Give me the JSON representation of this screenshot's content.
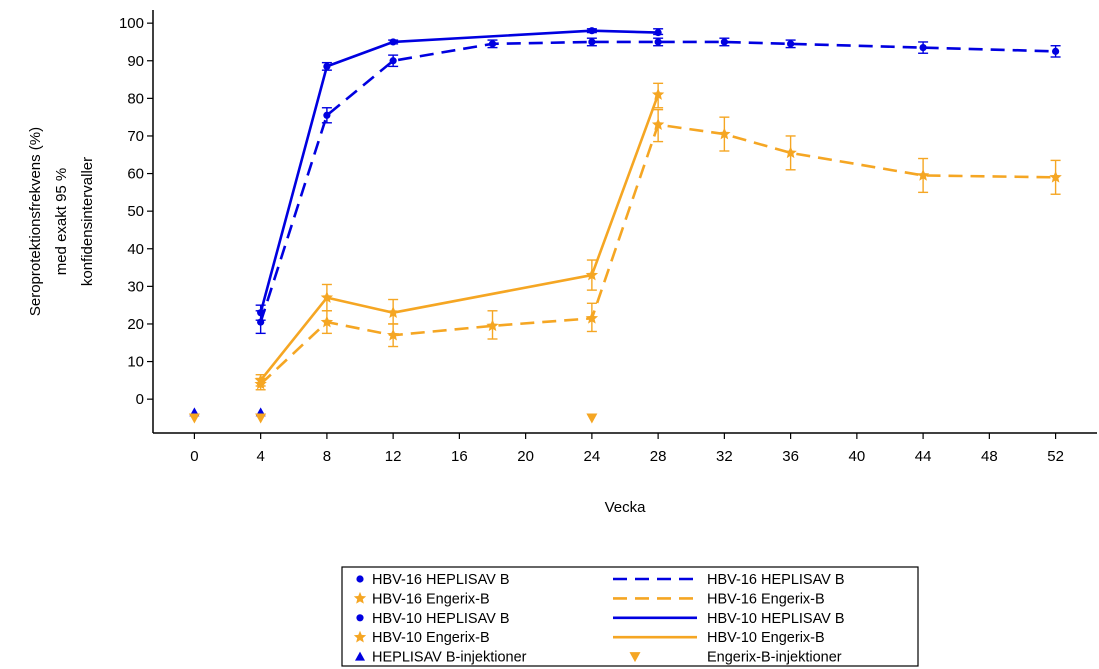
{
  "chart_data": {
    "type": "line",
    "xlabel": "Vecka",
    "ylabel_lines": [
      "Seroprotektionsfrekvens (%)",
      "med exakt 95 %",
      "konfidensintervaller"
    ],
    "x_ticks": [
      0,
      4,
      8,
      12,
      16,
      20,
      24,
      28,
      32,
      36,
      40,
      44,
      48,
      52
    ],
    "y_ticks": [
      0,
      10,
      20,
      30,
      40,
      50,
      60,
      70,
      80,
      90,
      100
    ],
    "xlim": [
      -2.5,
      54.5
    ],
    "ylim": [
      -9,
      103.5
    ],
    "colors": {
      "heplisav": "#0000e0",
      "engerix": "#f5a623"
    },
    "series": [
      {
        "study": "HBV-16",
        "vaccine": "HEPLISAV B",
        "line_style": "dashed",
        "marker": "circle",
        "color": "#0000e0",
        "points": [
          {
            "x": 4,
            "y": 20.5,
            "lo": 17.5,
            "hi": 23.5
          },
          {
            "x": 8,
            "y": 75.5,
            "lo": 73.5,
            "hi": 77.5
          },
          {
            "x": 12,
            "y": 90,
            "lo": 88.5,
            "hi": 91.5
          },
          {
            "x": 18,
            "y": 94.5,
            "lo": 93.5,
            "hi": 95.5
          },
          {
            "x": 24,
            "y": 95,
            "lo": 94,
            "hi": 96
          },
          {
            "x": 28,
            "y": 95,
            "lo": 94,
            "hi": 96
          },
          {
            "x": 32,
            "y": 95,
            "lo": 94,
            "hi": 96
          },
          {
            "x": 36,
            "y": 94.5,
            "lo": 93.5,
            "hi": 95.5
          },
          {
            "x": 44,
            "y": 93.5,
            "lo": 92,
            "hi": 95
          },
          {
            "x": 52,
            "y": 92.5,
            "lo": 91,
            "hi": 94
          }
        ]
      },
      {
        "study": "HBV-16",
        "vaccine": "Engerix-B",
        "line_style": "dashed",
        "marker": "star",
        "color": "#f5a623",
        "points": [
          {
            "x": 4,
            "y": 4,
            "lo": 2.5,
            "hi": 5.5
          },
          {
            "x": 8,
            "y": 20.5,
            "lo": 17.5,
            "hi": 23.5
          },
          {
            "x": 12,
            "y": 17,
            "lo": 14,
            "hi": 20
          },
          {
            "x": 18,
            "y": 19.5,
            "lo": 16,
            "hi": 23.5
          },
          {
            "x": 24,
            "y": 21.5,
            "lo": 18,
            "hi": 25.5
          },
          {
            "x": 28,
            "y": 73,
            "lo": 68.5,
            "hi": 77
          },
          {
            "x": 32,
            "y": 70.5,
            "lo": 66,
            "hi": 75
          },
          {
            "x": 36,
            "y": 65.5,
            "lo": 61,
            "hi": 70
          },
          {
            "x": 44,
            "y": 59.5,
            "lo": 55,
            "hi": 64
          },
          {
            "x": 52,
            "y": 59,
            "lo": 54.5,
            "hi": 63.5
          }
        ]
      },
      {
        "study": "HBV-10",
        "vaccine": "HEPLISAV B",
        "line_style": "solid",
        "marker": "circle",
        "color": "#0000e0",
        "points": [
          {
            "x": 4,
            "y": 23,
            "lo": 21,
            "hi": 25
          },
          {
            "x": 8,
            "y": 88.5,
            "lo": 87.5,
            "hi": 89.5
          },
          {
            "x": 12,
            "y": 95,
            "lo": 94.5,
            "hi": 95.5
          },
          {
            "x": 24,
            "y": 98,
            "lo": 97.5,
            "hi": 98.5
          },
          {
            "x": 28,
            "y": 97.5,
            "lo": 97,
            "hi": 98.5
          }
        ]
      },
      {
        "study": "HBV-10",
        "vaccine": "Engerix-B",
        "line_style": "solid",
        "marker": "star",
        "color": "#f5a623",
        "points": [
          {
            "x": 4,
            "y": 5,
            "lo": 3.5,
            "hi": 6.5
          },
          {
            "x": 8,
            "y": 27,
            "lo": 23.5,
            "hi": 30.5
          },
          {
            "x": 12,
            "y": 23,
            "lo": 20,
            "hi": 26.5
          },
          {
            "x": 24,
            "y": 33,
            "lo": 29,
            "hi": 37
          },
          {
            "x": 28,
            "y": 81,
            "lo": 77.5,
            "hi": 84
          }
        ]
      }
    ],
    "injections": [
      {
        "vaccine": "HEPLISAV B",
        "marker": "triangle-up",
        "color": "#0000e0",
        "weeks": [
          0,
          4
        ],
        "y": -3.5
      },
      {
        "vaccine": "Engerix-B",
        "marker": "triangle-down",
        "color": "#f5a623",
        "weeks": [
          0,
          4,
          24
        ],
        "y": -5
      }
    ],
    "legend": {
      "placement": "bottom-center",
      "rows": [
        {
          "marker": "circle",
          "marker_color": "#0000e0",
          "marker_label": "HBV-16 HEPLISAV  B",
          "line": "dashed",
          "line_color": "#0000e0",
          "line_label": "HBV-16 HEPLISAV  B"
        },
        {
          "marker": "star",
          "marker_color": "#f5a623",
          "marker_label": "HBV-16 Engerix-B",
          "line": "dashed",
          "line_color": "#f5a623",
          "line_label": "HBV-16 Engerix-B"
        },
        {
          "marker": "circle",
          "marker_color": "#0000e0",
          "marker_label": "HBV-10 HEPLISAV  B",
          "line": "solid",
          "line_color": "#0000e0",
          "line_label": "HBV-10 HEPLISAV  B"
        },
        {
          "marker": "star",
          "marker_color": "#f5a623",
          "marker_label": "HBV-10 Engerix-B",
          "line": "solid",
          "line_color": "#f5a623",
          "line_label": "HBV-10 Engerix-B"
        },
        {
          "marker": "triangle-up",
          "marker_color": "#0000e0",
          "marker_label": "HEPLISAV  B-injektioner",
          "line": "none",
          "line_color": "#f5a623",
          "line_label": "Engerix-B-injektioner",
          "line_marker": "triangle-down"
        }
      ]
    }
  }
}
